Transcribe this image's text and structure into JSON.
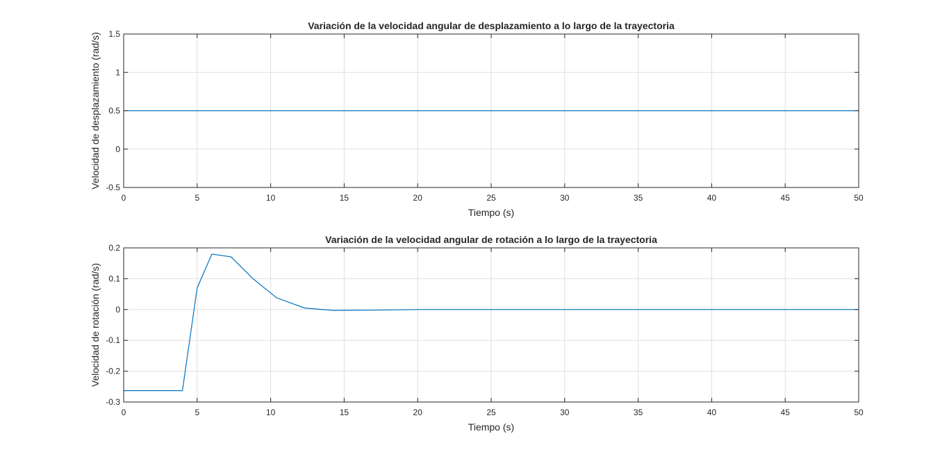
{
  "chart_data": [
    {
      "type": "line",
      "title": "Variación de la velocidad angular de desplazamiento a lo largo de la trayectoria",
      "xlabel": "Tiempo (s)",
      "ylabel": "Velocidad de desplazamiento (rad/s)",
      "xlim": [
        0,
        50
      ],
      "ylim": [
        -0.5,
        1.5
      ],
      "xticks": [
        0,
        5,
        10,
        15,
        20,
        25,
        30,
        35,
        40,
        45,
        50
      ],
      "yticks": [
        -0.5,
        0,
        0.5,
        1,
        1.5
      ],
      "ytick_labels": [
        "-0.5",
        "0",
        "0.5",
        "1",
        "1.5"
      ],
      "grid": true,
      "color": "#0072bd",
      "series": [
        {
          "x": [
            0,
            50
          ],
          "y": [
            0.5,
            0.5
          ]
        }
      ]
    },
    {
      "type": "line",
      "title": "Variación de la velocidad angular de rotación a lo largo de la trayectoria",
      "xlabel": "Tiempo (s)",
      "ylabel": "Velocidad de rotación (rad/s)",
      "xlim": [
        0,
        50
      ],
      "ylim": [
        -0.3,
        0.2
      ],
      "xticks": [
        0,
        5,
        10,
        15,
        20,
        25,
        30,
        35,
        40,
        45,
        50
      ],
      "yticks": [
        -0.3,
        -0.2,
        -0.1,
        0,
        0.1,
        0.2
      ],
      "ytick_labels": [
        "-0.3",
        "-0.2",
        "-0.1",
        "0",
        "0.1",
        "0.2"
      ],
      "grid": true,
      "color": "#0072bd",
      "series": [
        {
          "x": [
            0,
            4,
            5,
            6,
            7.3,
            8.8,
            10.4,
            12.3,
            14.3,
            17,
            20,
            25,
            50
          ],
          "y": [
            -0.263,
            -0.263,
            0.07,
            0.18,
            0.171,
            0.1,
            0.038,
            0.005,
            -0.003,
            -0.002,
            0,
            0,
            0
          ]
        }
      ]
    }
  ]
}
